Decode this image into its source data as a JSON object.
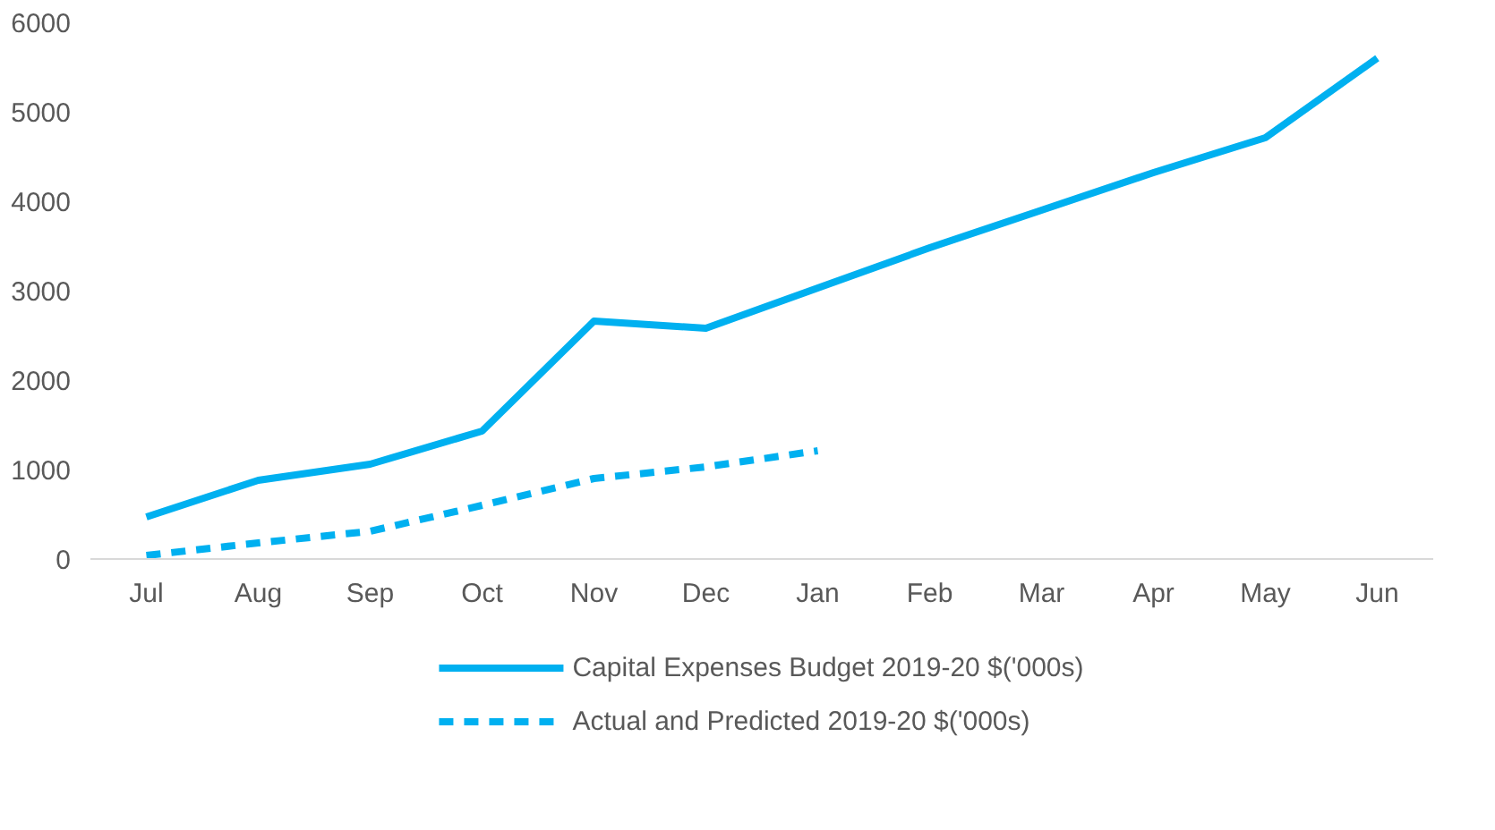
{
  "chart_data": {
    "type": "line",
    "categories": [
      "Jul",
      "Aug",
      "Sep",
      "Oct",
      "Nov",
      "Dec",
      "Jan",
      "Feb",
      "Mar",
      "Apr",
      "May",
      "Jun"
    ],
    "series": [
      {
        "name": "Capital Expenses Budget 2019-20 $('000s)",
        "color": "#00b0f0",
        "line_style": "solid",
        "values": [
          470,
          880,
          1060,
          1430,
          2660,
          2580,
          3030,
          3480,
          3900,
          4320,
          4710,
          5600
        ]
      },
      {
        "name": "Actual and Predicted 2019-20 $('000s)",
        "color": "#00b0f0",
        "line_style": "dashed",
        "values": [
          40,
          180,
          310,
          600,
          900,
          1030,
          1210,
          null,
          null,
          null,
          null,
          null
        ]
      }
    ],
    "ylim": [
      0,
      6000
    ],
    "yticks": [
      0,
      1000,
      2000,
      3000,
      4000,
      5000,
      6000
    ],
    "grid": false,
    "legend": "bottom",
    "marker": "none"
  }
}
